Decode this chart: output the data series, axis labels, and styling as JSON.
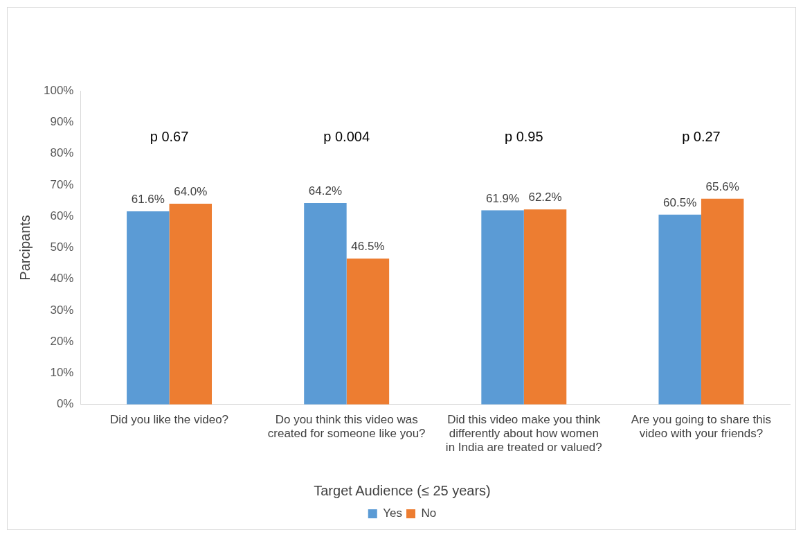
{
  "chart_data": {
    "type": "bar",
    "ylabel": "Parcipants",
    "legend_title": "Target Audience (≤ 25 years)",
    "categories": [
      "Did you like the video?",
      "Do you think this video was created for someone like you?",
      "Did this video make you think differently about how women in India are treated or valued?",
      "Are you going to share this video with your friends?"
    ],
    "series": [
      {
        "name": "Yes",
        "color": "#5b9bd5",
        "values": [
          61.6,
          64.2,
          61.9,
          60.5
        ],
        "value_labels": [
          "61.6%",
          "64.2%",
          "61.9%",
          "60.5%"
        ]
      },
      {
        "name": "No",
        "color": "#ed7d31",
        "values": [
          64.0,
          46.5,
          62.2,
          65.6
        ],
        "value_labels": [
          "64.0%",
          "46.5%",
          "62.2%",
          "65.6%"
        ]
      }
    ],
    "ylim": [
      0,
      100
    ],
    "yticks": [
      {
        "value": 0,
        "label": "0%"
      },
      {
        "value": 10,
        "label": "10%"
      },
      {
        "value": 20,
        "label": "20%"
      },
      {
        "value": 30,
        "label": "30%"
      },
      {
        "value": 40,
        "label": "40%"
      },
      {
        "value": 50,
        "label": "50%"
      },
      {
        "value": 60,
        "label": "60%"
      },
      {
        "value": 70,
        "label": "70%"
      },
      {
        "value": 80,
        "label": "80%"
      },
      {
        "value": 90,
        "label": "90%"
      },
      {
        "value": 100,
        "label": "100%"
      }
    ],
    "annotations": [
      "p 0.67",
      "p 0.004",
      "p 0.95",
      "p 0.27"
    ],
    "grid": false,
    "legend": "bottom"
  }
}
